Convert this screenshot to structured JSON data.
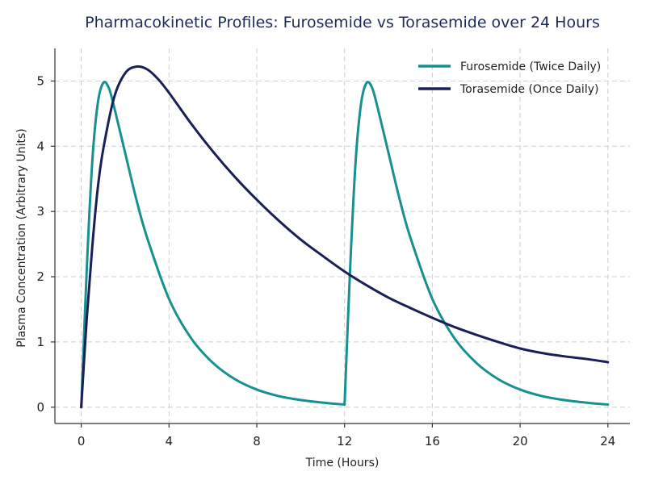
{
  "chart_data": {
    "type": "line",
    "title": "Pharmacokinetic Profiles: Furosemide vs Torasemide over 24 Hours",
    "xlabel": "Time (Hours)",
    "ylabel": "Plasma Concentration (Arbitrary Units)",
    "xlim": [
      -1.2,
      25
    ],
    "ylim": [
      -0.25,
      5.5
    ],
    "xticks": [
      0,
      4,
      8,
      12,
      16,
      20,
      24
    ],
    "yticks": [
      0,
      1,
      2,
      3,
      4,
      5
    ],
    "grid": true,
    "grid_style": "dashed",
    "legend_position": "top-right",
    "series": [
      {
        "name": "Furosemide (Twice Daily)",
        "color": "#17918f",
        "x": [
          0,
          0.25,
          0.5,
          0.75,
          1,
          1.25,
          1.5,
          2,
          2.5,
          3,
          4,
          5,
          6,
          7,
          8,
          9,
          10,
          11,
          12,
          12.25,
          12.5,
          12.75,
          13,
          13.25,
          13.5,
          14,
          14.5,
          15,
          16,
          17,
          18,
          19,
          20,
          21,
          22,
          23,
          24
        ],
        "y": [
          0,
          2.1,
          3.75,
          4.65,
          4.97,
          4.9,
          4.6,
          3.9,
          3.2,
          2.6,
          1.66,
          1.06,
          0.68,
          0.43,
          0.27,
          0.17,
          0.11,
          0.07,
          0.04,
          2.1,
          3.75,
          4.65,
          4.97,
          4.9,
          4.6,
          3.9,
          3.2,
          2.6,
          1.66,
          1.06,
          0.68,
          0.43,
          0.27,
          0.17,
          0.11,
          0.07,
          0.04
        ]
      },
      {
        "name": "Torasemide (Once Daily)",
        "color": "#1a2057",
        "x": [
          0,
          0.25,
          0.5,
          0.75,
          1,
          1.5,
          2,
          2.5,
          3,
          3.5,
          4,
          5,
          6,
          7,
          8,
          9,
          10,
          11,
          12,
          13,
          14,
          15,
          16,
          17,
          18,
          19,
          20,
          21,
          22,
          23,
          24
        ],
        "y": [
          0,
          1.35,
          2.45,
          3.35,
          3.95,
          4.75,
          5.12,
          5.22,
          5.18,
          5.03,
          4.82,
          4.35,
          3.92,
          3.53,
          3.18,
          2.86,
          2.57,
          2.32,
          2.08,
          1.87,
          1.68,
          1.52,
          1.37,
          1.23,
          1.11,
          1.0,
          0.9,
          0.83,
          0.78,
          0.74,
          0.69
        ]
      }
    ]
  }
}
